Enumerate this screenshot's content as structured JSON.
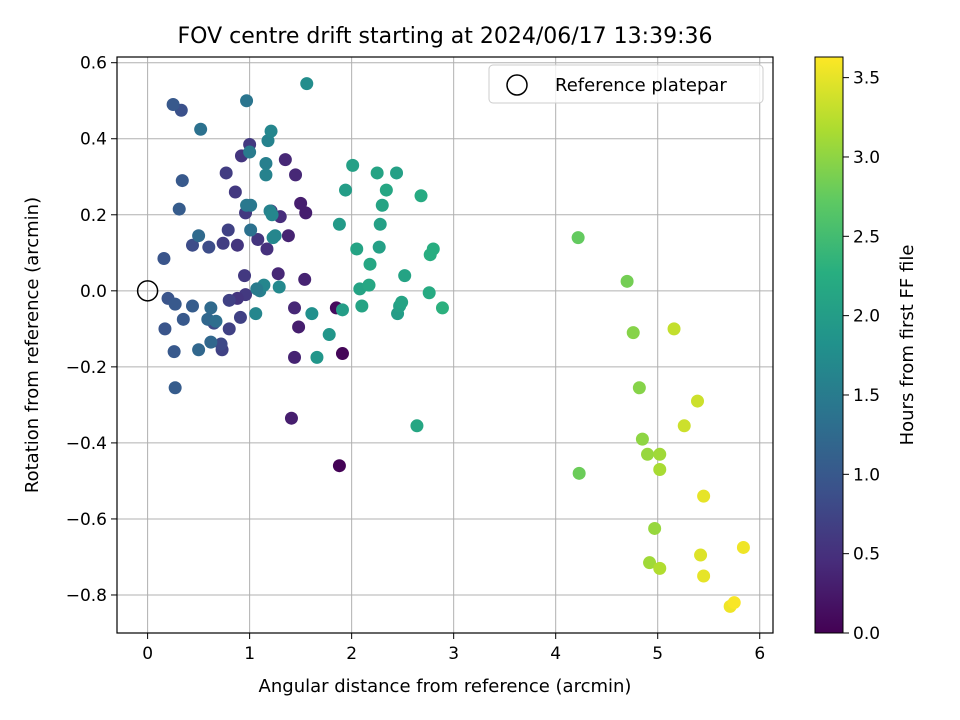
{
  "chart_data": {
    "type": "scatter",
    "title": "FOV centre drift starting at 2024/06/17 13:39:36",
    "xlabel": "Angular distance from reference (arcmin)",
    "ylabel": "Rotation from reference (arcmin)",
    "xlim": [
      -0.3,
      6.13
    ],
    "ylim": [
      -0.9,
      0.615
    ],
    "x_ticks": [
      0,
      1,
      2,
      3,
      4,
      5,
      6
    ],
    "x_tick_labels": [
      "0",
      "1",
      "2",
      "3",
      "4",
      "5",
      "6"
    ],
    "y_ticks": [
      0.6,
      0.4,
      0.2,
      0.0,
      -0.2,
      -0.4,
      -0.6,
      -0.8
    ],
    "y_tick_labels": [
      "0.6",
      "0.4",
      "0.2",
      "0.0",
      "−0.2",
      "−0.4",
      "−0.6",
      "−0.8"
    ],
    "grid": true,
    "legend": {
      "position": "top-right",
      "entries": [
        {
          "label": "Reference platepar",
          "marker": "open-circle"
        }
      ]
    },
    "reference_point": {
      "x": 0,
      "y": 0
    },
    "colorbar": {
      "label": "Hours from first FF file",
      "range": [
        0,
        3.63
      ],
      "ticks": [
        0.0,
        0.5,
        1.0,
        1.5,
        2.0,
        2.5,
        3.0,
        3.5
      ],
      "tick_labels": [
        "0.0",
        "0.5",
        "1.0",
        "1.5",
        "2.0",
        "2.5",
        "3.0",
        "3.5"
      ],
      "colormap": "viridis"
    },
    "points": [
      {
        "x": 1.88,
        "y": -0.46,
        "c": 0.02
      },
      {
        "x": 1.91,
        "y": -0.165,
        "c": 0.05
      },
      {
        "x": 1.85,
        "y": -0.045,
        "c": 0.1
      },
      {
        "x": 1.41,
        "y": -0.335,
        "c": 0.3
      },
      {
        "x": 1.44,
        "y": -0.175,
        "c": 0.35
      },
      {
        "x": 1.48,
        "y": -0.095,
        "c": 0.3
      },
      {
        "x": 1.44,
        "y": -0.045,
        "c": 0.4
      },
      {
        "x": 1.54,
        "y": 0.03,
        "c": 0.35
      },
      {
        "x": 1.55,
        "y": 0.205,
        "c": 0.3
      },
      {
        "x": 1.5,
        "y": 0.23,
        "c": 0.3
      },
      {
        "x": 1.45,
        "y": 0.305,
        "c": 0.4
      },
      {
        "x": 1.35,
        "y": 0.345,
        "c": 0.4
      },
      {
        "x": 1.38,
        "y": 0.145,
        "c": 0.35
      },
      {
        "x": 1.28,
        "y": 0.045,
        "c": 0.4
      },
      {
        "x": 1.3,
        "y": 0.195,
        "c": 0.45
      },
      {
        "x": 1.21,
        "y": 0.21,
        "c": 0.5
      },
      {
        "x": 1.17,
        "y": 0.11,
        "c": 0.5
      },
      {
        "x": 1.08,
        "y": 0.135,
        "c": 0.55
      },
      {
        "x": 0.92,
        "y": 0.355,
        "c": 0.55
      },
      {
        "x": 1.0,
        "y": 0.385,
        "c": 0.6
      },
      {
        "x": 0.77,
        "y": 0.31,
        "c": 0.65
      },
      {
        "x": 0.86,
        "y": 0.26,
        "c": 0.6
      },
      {
        "x": 0.96,
        "y": 0.205,
        "c": 0.6
      },
      {
        "x": 0.79,
        "y": 0.16,
        "c": 0.7
      },
      {
        "x": 0.88,
        "y": 0.12,
        "c": 0.55
      },
      {
        "x": 0.74,
        "y": 0.125,
        "c": 0.65
      },
      {
        "x": 0.95,
        "y": 0.04,
        "c": 0.6
      },
      {
        "x": 0.96,
        "y": -0.01,
        "c": 0.6
      },
      {
        "x": 0.88,
        "y": -0.02,
        "c": 0.55
      },
      {
        "x": 0.8,
        "y": -0.025,
        "c": 0.7
      },
      {
        "x": 0.91,
        "y": -0.07,
        "c": 0.7
      },
      {
        "x": 0.8,
        "y": -0.1,
        "c": 0.7
      },
      {
        "x": 0.73,
        "y": -0.155,
        "c": 0.7
      },
      {
        "x": 0.72,
        "y": -0.14,
        "c": 0.8
      },
      {
        "x": 0.65,
        "y": -0.085,
        "c": 0.8
      },
      {
        "x": 0.6,
        "y": 0.115,
        "c": 0.85
      },
      {
        "x": 0.44,
        "y": 0.12,
        "c": 0.85
      },
      {
        "x": 0.33,
        "y": 0.475,
        "c": 0.9
      },
      {
        "x": 0.25,
        "y": 0.49,
        "c": 1.0
      },
      {
        "x": 0.34,
        "y": 0.29,
        "c": 1.0
      },
      {
        "x": 0.31,
        "y": 0.215,
        "c": 1.05
      },
      {
        "x": 0.16,
        "y": 0.085,
        "c": 0.95
      },
      {
        "x": 0.2,
        "y": -0.02,
        "c": 0.95
      },
      {
        "x": 0.27,
        "y": -0.035,
        "c": 1.0
      },
      {
        "x": 0.35,
        "y": -0.075,
        "c": 1.0
      },
      {
        "x": 0.17,
        "y": -0.1,
        "c": 0.95
      },
      {
        "x": 0.26,
        "y": -0.16,
        "c": 1.0
      },
      {
        "x": 0.27,
        "y": -0.255,
        "c": 1.05
      },
      {
        "x": 0.44,
        "y": -0.04,
        "c": 1.05
      },
      {
        "x": 0.5,
        "y": -0.155,
        "c": 1.2
      },
      {
        "x": 0.59,
        "y": -0.075,
        "c": 1.2
      },
      {
        "x": 0.62,
        "y": -0.045,
        "c": 1.25
      },
      {
        "x": 0.62,
        "y": -0.135,
        "c": 1.2
      },
      {
        "x": 0.67,
        "y": -0.08,
        "c": 1.3
      },
      {
        "x": 0.5,
        "y": 0.145,
        "c": 1.25
      },
      {
        "x": 0.52,
        "y": 0.425,
        "c": 1.35
      },
      {
        "x": 0.97,
        "y": 0.5,
        "c": 1.4
      },
      {
        "x": 0.97,
        "y": 0.225,
        "c": 1.45
      },
      {
        "x": 1.01,
        "y": 0.16,
        "c": 1.35
      },
      {
        "x": 1.01,
        "y": 0.225,
        "c": 1.45
      },
      {
        "x": 1.0,
        "y": 0.365,
        "c": 1.5
      },
      {
        "x": 1.16,
        "y": 0.335,
        "c": 1.55
      },
      {
        "x": 1.16,
        "y": 0.305,
        "c": 1.6
      },
      {
        "x": 1.18,
        "y": 0.395,
        "c": 1.6
      },
      {
        "x": 1.21,
        "y": 0.42,
        "c": 1.65
      },
      {
        "x": 1.2,
        "y": 0.21,
        "c": 1.6
      },
      {
        "x": 1.22,
        "y": 0.2,
        "c": 1.65
      },
      {
        "x": 1.23,
        "y": 0.14,
        "c": 1.7
      },
      {
        "x": 1.25,
        "y": 0.145,
        "c": 1.65
      },
      {
        "x": 1.1,
        "y": 0.0,
        "c": 1.55
      },
      {
        "x": 1.14,
        "y": 0.015,
        "c": 1.65
      },
      {
        "x": 1.07,
        "y": 0.005,
        "c": 1.5
      },
      {
        "x": 1.06,
        "y": -0.06,
        "c": 1.65
      },
      {
        "x": 1.29,
        "y": 0.01,
        "c": 1.7
      },
      {
        "x": 1.56,
        "y": 0.545,
        "c": 1.75
      },
      {
        "x": 1.61,
        "y": -0.06,
        "c": 1.8
      },
      {
        "x": 1.66,
        "y": -0.175,
        "c": 1.9
      },
      {
        "x": 1.78,
        "y": -0.115,
        "c": 1.9
      },
      {
        "x": 1.88,
        "y": 0.175,
        "c": 1.95
      },
      {
        "x": 1.94,
        "y": 0.265,
        "c": 2.0
      },
      {
        "x": 1.91,
        "y": -0.05,
        "c": 2.0
      },
      {
        "x": 2.01,
        "y": 0.33,
        "c": 2.05
      },
      {
        "x": 2.05,
        "y": 0.11,
        "c": 2.1
      },
      {
        "x": 2.08,
        "y": 0.005,
        "c": 2.1
      },
      {
        "x": 2.1,
        "y": -0.04,
        "c": 2.1
      },
      {
        "x": 2.17,
        "y": 0.015,
        "c": 2.15
      },
      {
        "x": 2.18,
        "y": 0.07,
        "c": 2.15
      },
      {
        "x": 2.25,
        "y": 0.31,
        "c": 2.1
      },
      {
        "x": 2.27,
        "y": 0.115,
        "c": 2.05
      },
      {
        "x": 2.28,
        "y": 0.175,
        "c": 2.05
      },
      {
        "x": 2.3,
        "y": 0.225,
        "c": 2.1
      },
      {
        "x": 2.34,
        "y": 0.265,
        "c": 2.15
      },
      {
        "x": 2.44,
        "y": 0.31,
        "c": 2.05
      },
      {
        "x": 2.45,
        "y": -0.06,
        "c": 2.0
      },
      {
        "x": 2.47,
        "y": -0.04,
        "c": 2.05
      },
      {
        "x": 2.49,
        "y": -0.03,
        "c": 2.1
      },
      {
        "x": 2.52,
        "y": 0.04,
        "c": 2.1
      },
      {
        "x": 2.64,
        "y": -0.355,
        "c": 2.15
      },
      {
        "x": 2.68,
        "y": 0.25,
        "c": 2.2
      },
      {
        "x": 2.76,
        "y": -0.005,
        "c": 2.2
      },
      {
        "x": 2.77,
        "y": 0.095,
        "c": 2.25
      },
      {
        "x": 2.8,
        "y": 0.11,
        "c": 2.25
      },
      {
        "x": 2.89,
        "y": -0.045,
        "c": 2.3
      },
      {
        "x": 4.22,
        "y": 0.14,
        "c": 2.75
      },
      {
        "x": 4.23,
        "y": -0.48,
        "c": 2.8
      },
      {
        "x": 4.7,
        "y": 0.025,
        "c": 2.85
      },
      {
        "x": 4.76,
        "y": -0.11,
        "c": 2.95
      },
      {
        "x": 4.82,
        "y": -0.255,
        "c": 2.95
      },
      {
        "x": 4.85,
        "y": -0.39,
        "c": 3.0
      },
      {
        "x": 4.9,
        "y": -0.43,
        "c": 3.05
      },
      {
        "x": 4.92,
        "y": -0.715,
        "c": 3.1
      },
      {
        "x": 4.97,
        "y": -0.625,
        "c": 3.05
      },
      {
        "x": 5.02,
        "y": -0.43,
        "c": 3.1
      },
      {
        "x": 5.02,
        "y": -0.47,
        "c": 3.15
      },
      {
        "x": 5.02,
        "y": -0.73,
        "c": 3.2
      },
      {
        "x": 5.16,
        "y": -0.1,
        "c": 3.3
      },
      {
        "x": 5.26,
        "y": -0.355,
        "c": 3.35
      },
      {
        "x": 5.39,
        "y": -0.29,
        "c": 3.35
      },
      {
        "x": 5.42,
        "y": -0.695,
        "c": 3.45
      },
      {
        "x": 5.45,
        "y": -0.54,
        "c": 3.5
      },
      {
        "x": 5.45,
        "y": -0.75,
        "c": 3.5
      },
      {
        "x": 5.71,
        "y": -0.83,
        "c": 3.55
      },
      {
        "x": 5.75,
        "y": -0.82,
        "c": 3.6
      },
      {
        "x": 5.84,
        "y": -0.675,
        "c": 3.55
      }
    ]
  }
}
